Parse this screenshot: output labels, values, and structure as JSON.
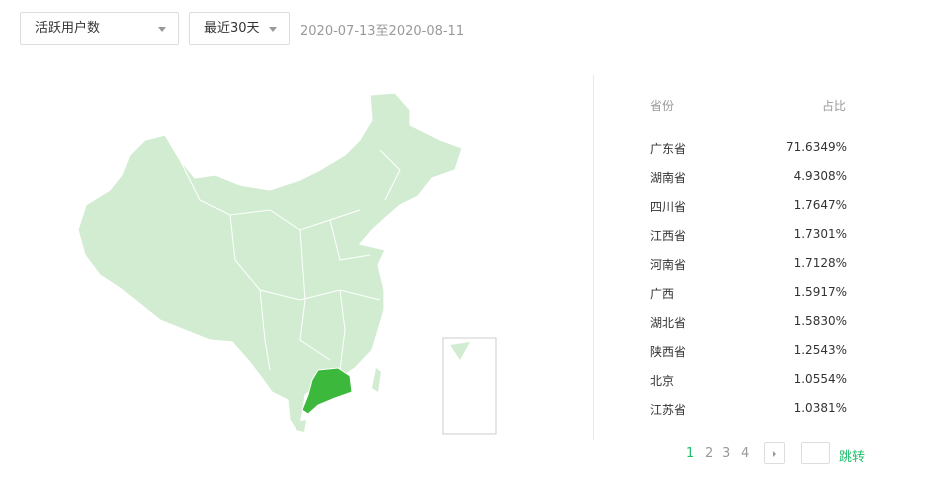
{
  "filters": {
    "metric": "活跃用户数",
    "range": "最近30天",
    "date_range": "2020-07-13至2020-08-11"
  },
  "map": {
    "highlight_region": "广东省",
    "base_color": "#d2ecd2",
    "highlight_color": "#3cb93c"
  },
  "table": {
    "headers": {
      "province": "省份",
      "share": "占比"
    },
    "rows": [
      {
        "province": "广东省",
        "share": "71.6349%"
      },
      {
        "province": "湖南省",
        "share": "4.9308%"
      },
      {
        "province": "四川省",
        "share": "1.7647%"
      },
      {
        "province": "江西省",
        "share": "1.7301%"
      },
      {
        "province": "河南省",
        "share": "1.7128%"
      },
      {
        "province": "广西",
        "share": "1.5917%"
      },
      {
        "province": "湖北省",
        "share": "1.5830%"
      },
      {
        "province": "陕西省",
        "share": "1.2543%"
      },
      {
        "province": "北京",
        "share": "1.0554%"
      },
      {
        "province": "江苏省",
        "share": "1.0381%"
      }
    ]
  },
  "pagination": {
    "pages": [
      "1",
      "2",
      "3",
      "4"
    ],
    "current": "1",
    "jump_value": "",
    "jump_label": "跳转",
    "accent": "#1fbf6c"
  }
}
